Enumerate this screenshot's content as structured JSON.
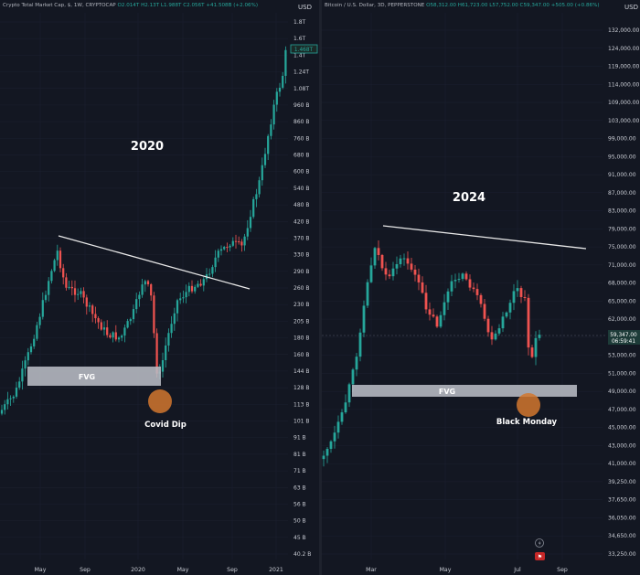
{
  "left": {
    "header": {
      "symbol": "Crypto Total Market Cap, $, 1W, CRYPTOCAP",
      "ohlc": "O2.014T  H2.13T  L1.988T  C2.056T  +41.508B (+2.06%)"
    },
    "currency": "USD",
    "year_label": "2020",
    "fvg_label": "FVG",
    "dip_label": "Covid Dip",
    "price_tag": "1.468T",
    "chart_data": {
      "type": "candlestick",
      "y_scale": "log",
      "y_ticks": [
        "1.8T",
        "1.6T",
        "1.4T",
        "1.24T",
        "1.08T",
        "960 B",
        "860 B",
        "760 B",
        "680 B",
        "600 B",
        "540 B",
        "480 B",
        "420 B",
        "370 B",
        "330 B",
        "290 B",
        "260 B",
        "230 B",
        "205 B",
        "180 B",
        "160 B",
        "144 B",
        "128 B",
        "113 B",
        "101 B",
        "91 B",
        "81 B",
        "71 B",
        "63 B",
        "56 B",
        "50 B",
        "45 B",
        "40.2 B"
      ],
      "x_ticks": [
        "May",
        "Sep",
        "2020",
        "May",
        "Sep",
        "2021"
      ],
      "highlights": [
        {
          "name": "resistance trendline",
          "from": 380,
          "to": 255
        },
        {
          "name": "FVG",
          "low": 123,
          "high": 150
        },
        {
          "name": "Covid Dip",
          "value": 128
        }
      ]
    }
  },
  "right": {
    "header": {
      "symbol": "Bitcoin / U.S. Dollar, 3D, PEPPERSTONE",
      "ohlc": "O58,312.00  H61,723.00  L57,752.00  C59,347.00  +505.00 (+0.86%)"
    },
    "currency": "USD",
    "year_label": "2024",
    "fvg_label": "FVG",
    "dip_label": "Black Monday",
    "price_tag": "59,347.00",
    "countdown": "06:59:41",
    "chart_data": {
      "type": "candlestick",
      "y_scale": "log",
      "y_ticks": [
        "132,000.00",
        "124,000.00",
        "119,000.00",
        "114,000.00",
        "109,000.00",
        "103,000.00",
        "99,000.00",
        "95,000.00",
        "91,000.00",
        "87,000.00",
        "83,000.00",
        "79,000.00",
        "75,000.00",
        "71,000.00",
        "68,000.00",
        "65,000.00",
        "62,000.00",
        "56,000.00",
        "53,000.00",
        "51,000.00",
        "49,000.00",
        "47,000.00",
        "45,000.00",
        "43,000.00",
        "41,000.00",
        "39,250.00",
        "37,650.00",
        "36,050.00",
        "34,650.00",
        "33,250.00"
      ],
      "x_ticks": [
        "Mar",
        "May",
        "Jul",
        "Sep"
      ],
      "highlights": [
        {
          "name": "resistance trendline",
          "from": 73800,
          "to": 70500
        },
        {
          "name": "FVG",
          "low": 50600,
          "high": 52200
        },
        {
          "name": "Black Monday",
          "value": 49800
        }
      ]
    }
  },
  "colors": {
    "up": "#26a69a",
    "down": "#ef5350",
    "background": "#131722",
    "fvg_zone": "#b8bcc4",
    "dip_circle": "#d2772e"
  }
}
